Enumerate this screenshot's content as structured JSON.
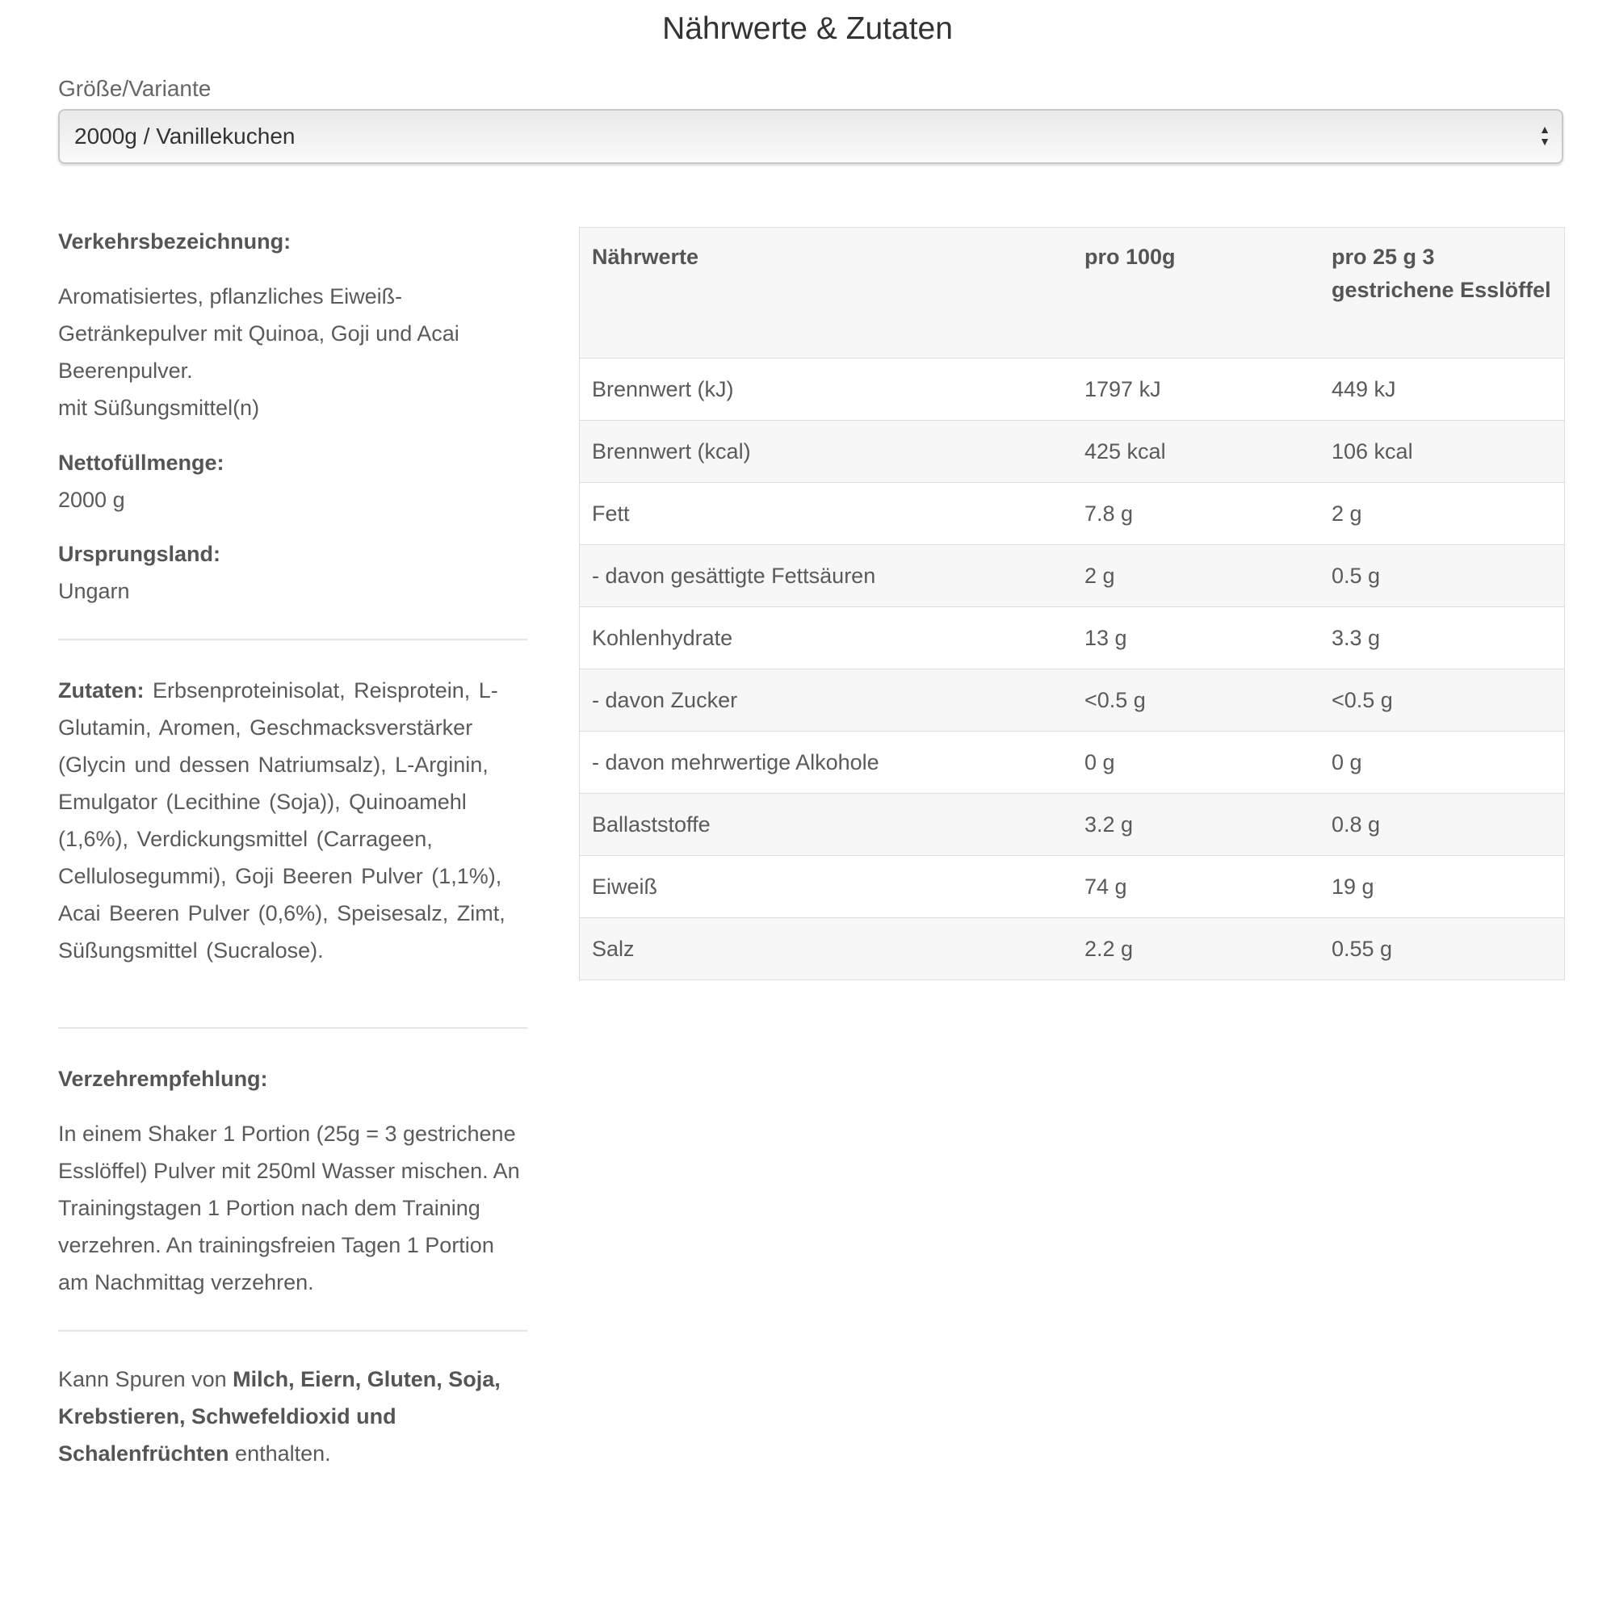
{
  "title": "Nährwerte & Zutaten",
  "variant": {
    "label": "Größe/Variante",
    "selected": "2000g / Vanillekuchen"
  },
  "left": {
    "designation_label": "Verkehrsbezeichnung:",
    "designation_text": "Aromatisiertes, pflanzliches Eiweiß-Getränkepulver mit Quinoa, Goji und Acai Beerenpulver.",
    "designation_note": "mit Süßungsmittel(n)",
    "net_label": "Nettofüllmenge:",
    "net_value": "2000 g",
    "origin_label": "Ursprungsland:",
    "origin_value": "Ungarn",
    "ingredients_label": "Zutaten:",
    "ingredients": [
      "Erbsenproteinisolat,",
      "Reisprotein,",
      "L-Glutamin,",
      "Aromen,",
      "Geschmacksverstärker (Glycin und dessen Natriumsalz),",
      "L-Arginin,",
      "Emulgator (Lecithine (Soja)),",
      "Quinoamehl (1,6%),",
      "Verdickungsmittel (Carrageen, Cellulosegummi),",
      "Goji Beeren Pulver (1,1%),",
      "Acai Beeren Pulver (0,6%),",
      "Speisesalz,",
      "Zimt,",
      "Süßungsmittel (Sucralose)."
    ],
    "usage_label": "Verzehrempfehlung:",
    "usage_text": "In einem Shaker 1 Portion (25g = 3 gestrichene Esslöffel) Pulver mit 250ml Wasser mischen. An Trainingstagen 1 Portion nach dem Training verzehren. An trainingsfreien Tagen 1 Portion am Nachmittag verzehren.",
    "allergen_prefix": "Kann Spuren von ",
    "allergen_bold": "Milch, Eiern, Gluten, Soja, Krebstieren, Schwefeldioxid und Schalenfrüchten",
    "allergen_suffix": " enthalten."
  },
  "table": {
    "headers": [
      "Nährwerte",
      "pro 100g",
      "pro 25 g 3 gestrichene Esslöffel"
    ],
    "rows": [
      [
        "Brennwert (kJ)",
        "1797 kJ",
        "449 kJ"
      ],
      [
        "Brennwert (kcal)",
        "425 kcal",
        "106 kcal"
      ],
      [
        "Fett",
        "7.8 g",
        "2 g"
      ],
      [
        "- davon gesättigte Fettsäuren",
        "2 g",
        "0.5 g"
      ],
      [
        "Kohlenhydrate",
        "13 g",
        "3.3 g"
      ],
      [
        "- davon Zucker",
        "<0.5 g",
        "<0.5 g"
      ],
      [
        "- davon mehrwertige Alkohole",
        "0 g",
        "0 g"
      ],
      [
        "Ballaststoffe",
        "3.2 g",
        "0.8 g"
      ],
      [
        "Eiweiß",
        "74 g",
        "19 g"
      ],
      [
        "Salz",
        "2.2 g",
        "0.55 g"
      ]
    ]
  }
}
